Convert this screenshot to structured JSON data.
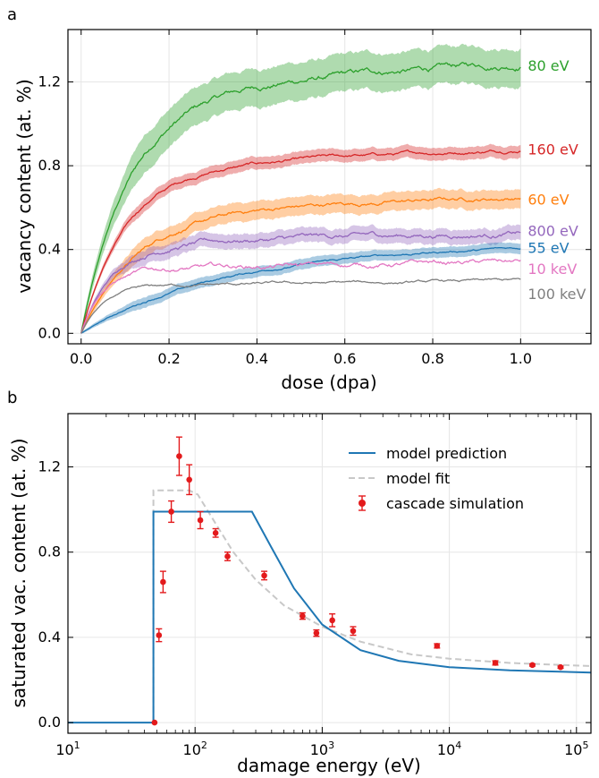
{
  "chart_data": [
    {
      "panel": "a",
      "type": "line",
      "xlabel": "dose (dpa)",
      "ylabel": "vacancy content (at. %)",
      "xlim": [
        -0.03,
        1.16
      ],
      "ylim": [
        -0.05,
        1.45
      ],
      "xticks": [
        0.0,
        0.2,
        0.4,
        0.6,
        0.8,
        1.0
      ],
      "yticks": [
        0.0,
        0.4,
        0.8,
        1.2
      ],
      "xtick_labels": [
        "0.0",
        "0.2",
        "0.4",
        "0.6",
        "0.8",
        "1.0"
      ],
      "ytick_labels": [
        "0.0",
        "0.4",
        "0.8",
        "1.2"
      ],
      "grid": true,
      "series": [
        {
          "label": "80 eV",
          "color": "#2ca02c",
          "saturation": 1.29,
          "k": 9.0,
          "band": 0.09,
          "noise": 0.022
        },
        {
          "label": "160 eV",
          "color": "#d62728",
          "saturation": 0.88,
          "k": 10.0,
          "band": 0.03,
          "noise": 0.012
        },
        {
          "label": "60 eV",
          "color": "#ff7f0e",
          "saturation": 0.65,
          "k": 8.0,
          "band": 0.045,
          "noise": 0.015
        },
        {
          "label": "800 eV",
          "color": "#9467bd",
          "saturation": 0.48,
          "k": 14.0,
          "band": 0.035,
          "noise": 0.018
        },
        {
          "label": "55 eV",
          "color": "#1f77b4",
          "saturation": 0.42,
          "k": 3.5,
          "band": 0.025,
          "noise": 0.008
        },
        {
          "label": "10 keV",
          "color": "#e377c2",
          "saturation": 0.34,
          "k": 22.0,
          "band": 0.0,
          "noise": 0.018
        },
        {
          "label": "100 keV",
          "color": "#7f7f7f",
          "saturation": 0.25,
          "k": 20.0,
          "band": 0.0,
          "noise": 0.01
        }
      ],
      "label_y": [
        1.28,
        0.88,
        0.64,
        0.49,
        0.41,
        0.31,
        0.19
      ]
    },
    {
      "panel": "b",
      "type": "scatter",
      "xlabel": "damage energy (eV)",
      "ylabel": "saturated vac. content (at. %)",
      "xscale": "log",
      "xlim": [
        10,
        130000
      ],
      "ylim": [
        -0.05,
        1.45
      ],
      "yticks": [
        0.0,
        0.4,
        0.8,
        1.2
      ],
      "ytick_labels": [
        "0.0",
        "0.4",
        "0.8",
        "1.2"
      ],
      "xtick_labels": [
        {
          "base": "10",
          "exp": "1"
        },
        {
          "base": "10",
          "exp": "2"
        },
        {
          "base": "10",
          "exp": "3"
        },
        {
          "base": "10",
          "exp": "4"
        },
        {
          "base": "10",
          "exp": "5"
        }
      ],
      "grid": true,
      "legend": {
        "position": "top-right",
        "entries": [
          "model prediction",
          "model fit",
          "cascade simulation"
        ]
      },
      "model_prediction": {
        "color": "#1f77b4",
        "x": [
          10,
          47,
          47,
          50,
          100,
          200,
          280,
          400,
          600,
          1000,
          2000,
          4000,
          10000,
          30000,
          130000
        ],
        "y": [
          0,
          0,
          0.99,
          0.99,
          0.99,
          0.99,
          0.99,
          0.82,
          0.63,
          0.46,
          0.34,
          0.29,
          0.26,
          0.245,
          0.235
        ]
      },
      "model_fit": {
        "color": "#c8c8c8",
        "x": [
          47,
          47,
          60,
          90,
          105,
          150,
          200,
          300,
          500,
          1000,
          2000,
          5000,
          10000,
          30000,
          130000
        ],
        "y": [
          0,
          1.09,
          1.09,
          1.09,
          1.07,
          0.92,
          0.8,
          0.67,
          0.55,
          0.45,
          0.38,
          0.32,
          0.3,
          0.28,
          0.265
        ]
      },
      "cascade_simulation": {
        "color": "#e31a1c",
        "points": [
          {
            "x": 48,
            "y": 0.0,
            "err": 0.0
          },
          {
            "x": 52,
            "y": 0.41,
            "err": 0.03
          },
          {
            "x": 56,
            "y": 0.66,
            "err": 0.05
          },
          {
            "x": 65,
            "y": 0.99,
            "err": 0.05
          },
          {
            "x": 75,
            "y": 1.25,
            "err": 0.09
          },
          {
            "x": 90,
            "y": 1.14,
            "err": 0.07
          },
          {
            "x": 110,
            "y": 0.95,
            "err": 0.04
          },
          {
            "x": 145,
            "y": 0.89,
            "err": 0.02
          },
          {
            "x": 180,
            "y": 0.78,
            "err": 0.02
          },
          {
            "x": 350,
            "y": 0.69,
            "err": 0.02
          },
          {
            "x": 700,
            "y": 0.5,
            "err": 0.015
          },
          {
            "x": 900,
            "y": 0.42,
            "err": 0.015
          },
          {
            "x": 1200,
            "y": 0.48,
            "err": 0.03
          },
          {
            "x": 1750,
            "y": 0.43,
            "err": 0.02
          },
          {
            "x": 8000,
            "y": 0.36,
            "err": 0.01
          },
          {
            "x": 23000,
            "y": 0.28,
            "err": 0.01
          },
          {
            "x": 45000,
            "y": 0.27,
            "err": 0.005
          },
          {
            "x": 75000,
            "y": 0.26,
            "err": 0.005
          }
        ]
      }
    }
  ]
}
